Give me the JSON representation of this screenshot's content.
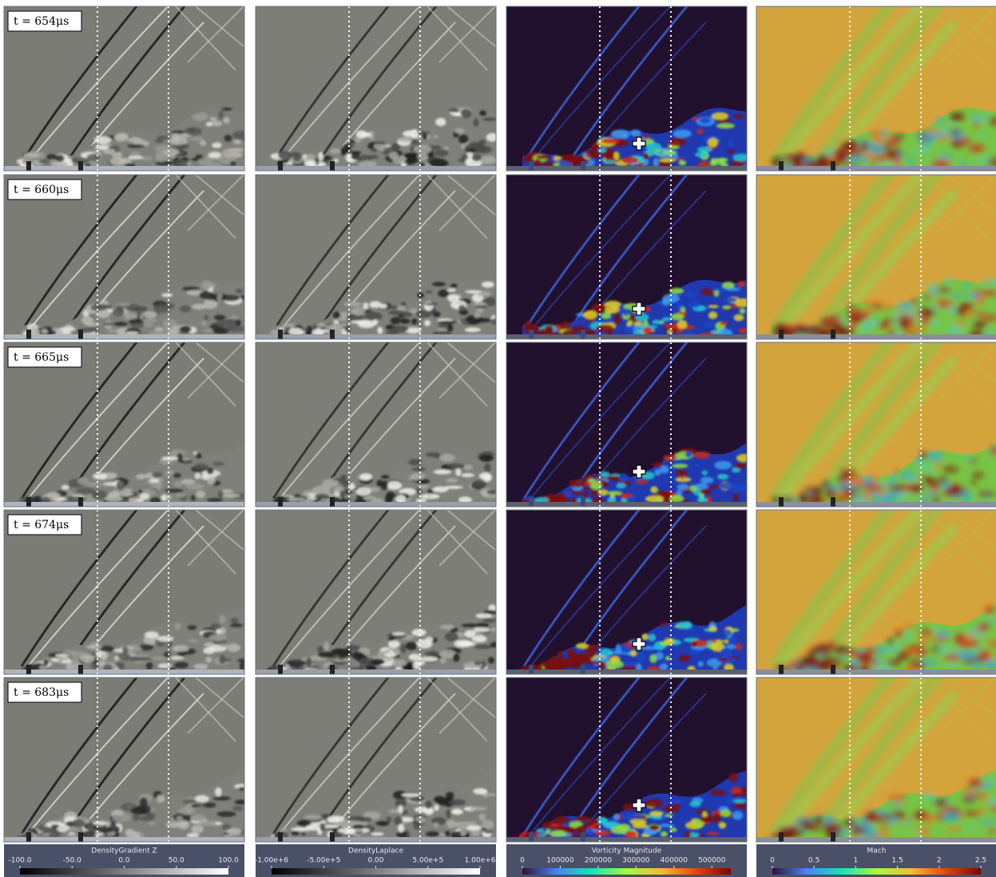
{
  "rows": [
    {
      "time": "t = 654μs"
    },
    {
      "time": "t = 660μs"
    },
    {
      "time": "t = 665μs"
    },
    {
      "time": "t = 674μs"
    },
    {
      "time": "t = 683μs"
    }
  ],
  "colorbars": [
    {
      "title": "DensityGradient Z",
      "range": [
        -100,
        100
      ],
      "colors": [
        "#000000",
        "#ffffff"
      ],
      "ticks": [
        {
          "value": -100,
          "label": "-100.0"
        },
        {
          "value": -50,
          "label": "-50.0"
        },
        {
          "value": 0,
          "label": "0.0"
        },
        {
          "value": 50,
          "label": "50.0"
        },
        {
          "value": 100,
          "label": "100.0"
        }
      ]
    },
    {
      "title": "DensityLaplace",
      "range": [
        -1000000,
        1000000
      ],
      "colors": [
        "#000000",
        "#ffffff"
      ],
      "ticks": [
        {
          "value": -1000000,
          "label": "-1.00e+6"
        },
        {
          "value": -500000,
          "label": "-5.00e+5"
        },
        {
          "value": 0,
          "label": "0.00"
        },
        {
          "value": 500000,
          "label": "5.00e+5"
        },
        {
          "value": 1000000,
          "label": "1.00e+6"
        }
      ]
    },
    {
      "title": "Vorticity Magnitude",
      "range": [
        0,
        550000
      ],
      "colors": [
        "#30123b",
        "#4686fb",
        "#1ae4b6",
        "#a2fc3c",
        "#f9ba38",
        "#e4460a",
        "#7a0403"
      ],
      "ticks": [
        0,
        100000,
        200000,
        300000,
        400000,
        500000
      ]
    },
    {
      "title": "Mach",
      "range": [
        0,
        2.5
      ],
      "colors": [
        "#30123b",
        "#4686fb",
        "#1ae4b6",
        "#a2fc3c",
        "#f9ba38",
        "#e4460a",
        "#7a0403"
      ],
      "ticks": [
        0,
        0.5,
        1,
        1.5,
        2,
        2.5
      ]
    }
  ]
}
